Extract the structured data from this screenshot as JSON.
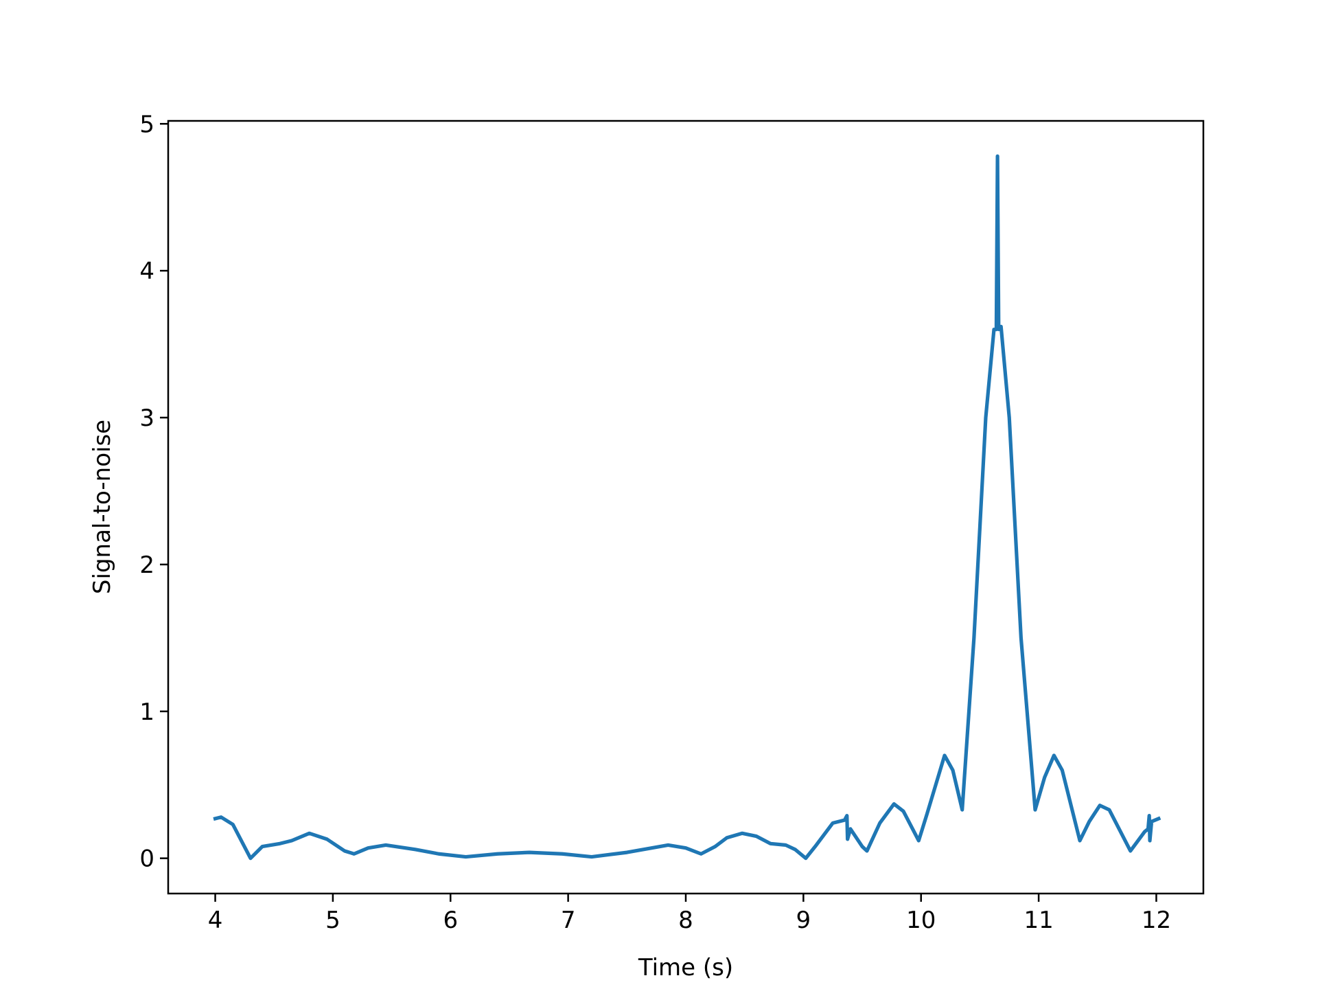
{
  "chart_data": {
    "type": "line",
    "xlabel": "Time (s)",
    "ylabel": "Signal-to-noise",
    "xlim": [
      3.6,
      12.4
    ],
    "ylim": [
      -0.24,
      5.02
    ],
    "xticks": [
      4,
      5,
      6,
      7,
      8,
      9,
      10,
      11,
      12
    ],
    "yticks": [
      0,
      1,
      2,
      3,
      4,
      5
    ],
    "grid": false,
    "series": [
      {
        "color": "#1f77b4",
        "x": [
          4.0,
          4.05,
          4.15,
          4.3,
          4.4,
          4.55,
          4.65,
          4.8,
          4.95,
          5.1,
          5.18,
          5.3,
          5.45,
          5.7,
          5.9,
          6.13,
          6.4,
          6.67,
          6.95,
          7.2,
          7.5,
          7.85,
          8.0,
          8.13,
          8.25,
          8.35,
          8.48,
          8.6,
          8.72,
          8.85,
          8.93,
          9.02,
          9.1,
          9.25,
          9.35,
          9.37,
          9.375,
          9.4,
          9.5,
          9.54,
          9.65,
          9.77,
          9.85,
          9.98,
          10.05,
          10.2,
          10.27,
          10.35,
          10.45,
          10.55,
          10.62,
          10.64,
          10.65,
          10.66,
          10.68,
          10.75,
          10.85,
          10.97,
          11.05,
          11.13,
          11.2,
          11.35,
          11.43,
          11.52,
          11.6,
          11.78,
          11.9,
          11.93,
          11.94,
          11.945,
          11.96,
          12.02
        ],
        "values": [
          0.27,
          0.28,
          0.23,
          0.0,
          0.08,
          0.1,
          0.12,
          0.17,
          0.13,
          0.05,
          0.03,
          0.07,
          0.09,
          0.06,
          0.03,
          0.01,
          0.03,
          0.04,
          0.03,
          0.01,
          0.04,
          0.09,
          0.07,
          0.03,
          0.08,
          0.14,
          0.17,
          0.15,
          0.1,
          0.09,
          0.06,
          0.0,
          0.08,
          0.24,
          0.26,
          0.29,
          0.13,
          0.2,
          0.08,
          0.05,
          0.24,
          0.37,
          0.32,
          0.12,
          0.3,
          0.7,
          0.6,
          0.33,
          1.5,
          3.0,
          3.6,
          3.6,
          4.78,
          3.6,
          3.62,
          3.0,
          1.5,
          0.33,
          0.55,
          0.7,
          0.6,
          0.12,
          0.25,
          0.36,
          0.33,
          0.05,
          0.18,
          0.2,
          0.29,
          0.12,
          0.25,
          0.27
        ]
      }
    ]
  }
}
